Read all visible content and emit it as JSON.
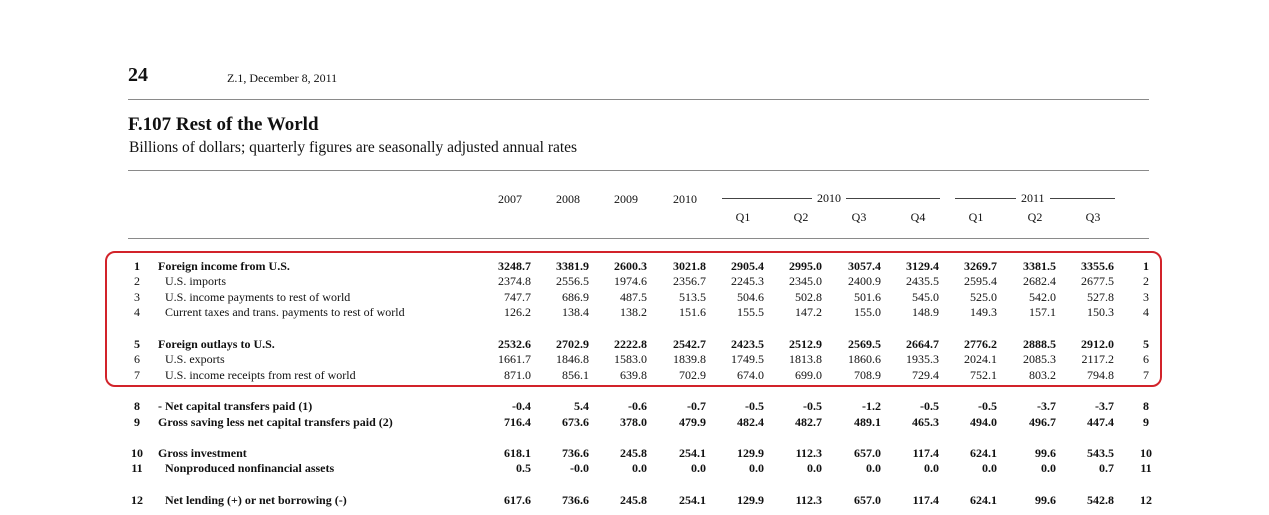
{
  "header": {
    "page_number": "24",
    "release": "Z.1, December 8, 2011"
  },
  "table": {
    "title": "F.107 Rest of the World",
    "subtitle": "Billions of dollars; quarterly figures are seasonally adjusted annual rates",
    "annual_headers": [
      "2007",
      "2008",
      "2009",
      "2010"
    ],
    "group_2010": "2010",
    "group_2011": "2011",
    "quarter_headers": [
      "Q1",
      "Q2",
      "Q3",
      "Q4",
      "Q1",
      "Q2",
      "Q3"
    ],
    "rows": [
      {
        "num": "1",
        "label": "Foreign income from U.S.",
        "bold": true,
        "indent": 0,
        "values": [
          "3248.7",
          "3381.9",
          "2600.3",
          "3021.8",
          "2905.4",
          "2995.0",
          "3057.4",
          "3129.4",
          "3269.7",
          "3381.5",
          "3355.6"
        ]
      },
      {
        "num": "2",
        "label": "U.S. imports",
        "bold": false,
        "indent": 1,
        "values": [
          "2374.8",
          "2556.5",
          "1974.6",
          "2356.7",
          "2245.3",
          "2345.0",
          "2400.9",
          "2435.5",
          "2595.4",
          "2682.4",
          "2677.5"
        ]
      },
      {
        "num": "3",
        "label": "U.S. income payments to rest of world",
        "bold": false,
        "indent": 1,
        "values": [
          "747.7",
          "686.9",
          "487.5",
          "513.5",
          "504.6",
          "502.8",
          "501.6",
          "545.0",
          "525.0",
          "542.0",
          "527.8"
        ]
      },
      {
        "num": "4",
        "label": "Current taxes and trans. payments to rest of world",
        "bold": false,
        "indent": 1,
        "values": [
          "126.2",
          "138.4",
          "138.2",
          "151.6",
          "155.5",
          "147.2",
          "155.0",
          "148.9",
          "149.3",
          "157.1",
          "150.3"
        ]
      },
      {
        "num": "5",
        "label": "Foreign outlays to U.S.",
        "bold": true,
        "indent": 0,
        "values": [
          "2532.6",
          "2702.9",
          "2222.8",
          "2542.7",
          "2423.5",
          "2512.9",
          "2569.5",
          "2664.7",
          "2776.2",
          "2888.5",
          "2912.0"
        ]
      },
      {
        "num": "6",
        "label": "U.S. exports",
        "bold": false,
        "indent": 1,
        "values": [
          "1661.7",
          "1846.8",
          "1583.0",
          "1839.8",
          "1749.5",
          "1813.8",
          "1860.6",
          "1935.3",
          "2024.1",
          "2085.3",
          "2117.2"
        ]
      },
      {
        "num": "7",
        "label": "U.S. income receipts from rest of world",
        "bold": false,
        "indent": 1,
        "values": [
          "871.0",
          "856.1",
          "639.8",
          "702.9",
          "674.0",
          "699.0",
          "708.9",
          "729.4",
          "752.1",
          "803.2",
          "794.8"
        ]
      },
      {
        "num": "8",
        "label": "- Net capital transfers paid (1)",
        "bold": true,
        "indent": 0,
        "values": [
          "-0.4",
          "5.4",
          "-0.6",
          "-0.7",
          "-0.5",
          "-0.5",
          "-1.2",
          "-0.5",
          "-0.5",
          "-3.7",
          "-3.7"
        ]
      },
      {
        "num": "9",
        "label": "Gross saving less net capital transfers paid (2)",
        "bold": true,
        "indent": 0,
        "values": [
          "716.4",
          "673.6",
          "378.0",
          "479.9",
          "482.4",
          "482.7",
          "489.1",
          "465.3",
          "494.0",
          "496.7",
          "447.4"
        ]
      },
      {
        "num": "10",
        "label": "Gross investment",
        "bold": true,
        "indent": 0,
        "values": [
          "618.1",
          "736.6",
          "245.8",
          "254.1",
          "129.9",
          "112.3",
          "657.0",
          "117.4",
          "624.1",
          "99.6",
          "543.5"
        ]
      },
      {
        "num": "11",
        "label": "Nonproduced nonfinancial assets",
        "bold": true,
        "indent": 1,
        "values": [
          "0.5",
          "-0.0",
          "0.0",
          "0.0",
          "0.0",
          "0.0",
          "0.0",
          "0.0",
          "0.0",
          "0.0",
          "0.7"
        ]
      },
      {
        "num": "12",
        "label": "Net lending (+) or net borrowing (-)",
        "bold": true,
        "indent": 1,
        "values": [
          "617.6",
          "736.6",
          "245.8",
          "254.1",
          "129.9",
          "112.3",
          "657.0",
          "117.4",
          "624.1",
          "99.6",
          "542.8"
        ]
      }
    ]
  },
  "colors": {
    "highlight_border": "#d2232a",
    "rule": "#8a8a8a"
  }
}
